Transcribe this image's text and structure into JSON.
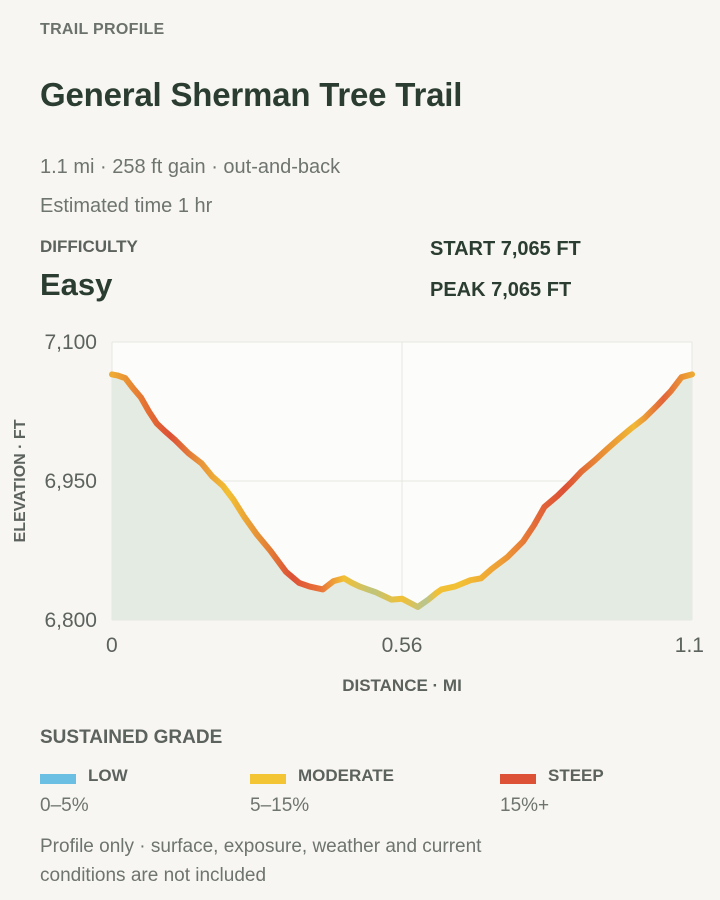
{
  "header": {
    "eyebrow": "TRAIL PROFILE",
    "title": "General Sherman Tree Trail",
    "summary": "1.1 mi · 258 ft gain · out-and-back",
    "estimated_time": "Estimated time 1 hr"
  },
  "difficulty": {
    "label": "DIFFICULTY",
    "value": "Easy"
  },
  "stats": {
    "start": "START 7,065 FT",
    "peak": "PEAK 7,065 FT"
  },
  "legend": {
    "title": "SUSTAINED GRADE",
    "items": [
      {
        "name": "LOW",
        "range": "0–5%",
        "color": "#6bbfe3"
      },
      {
        "name": "MODERATE",
        "range": "5–15%",
        "color": "#f3c534"
      },
      {
        "name": "STEEP",
        "range": "15%+",
        "color": "#dd5136"
      }
    ]
  },
  "footnote": "Profile only · surface, exposure, weather and current conditions are not included",
  "chart_data": {
    "type": "area",
    "xlabel": "DISTANCE · MI",
    "ylabel": "ELEVATION · FT",
    "xlim": [
      0,
      1.1
    ],
    "ylim": [
      6800,
      7100
    ],
    "x_ticks": [
      "0",
      "0.56",
      "1.1"
    ],
    "y_ticks": [
      "7,100",
      "6,950",
      "6,800"
    ],
    "grid": true,
    "fill_color": "#e4ebe3",
    "series": [
      {
        "x": [
          0,
          0.01,
          0.025,
          0.04,
          0.055,
          0.07,
          0.085,
          0.1,
          0.12,
          0.145,
          0.17,
          0.19,
          0.21,
          0.23,
          0.25,
          0.275,
          0.3,
          0.33,
          0.355,
          0.375,
          0.4,
          0.42,
          0.44,
          0.455,
          0.47,
          0.485,
          0.5,
          0.53,
          0.55,
          0.58,
          0.6,
          0.615,
          0.625,
          0.65,
          0.68,
          0.7,
          0.72,
          0.75,
          0.78,
          0.8,
          0.82,
          0.845,
          0.87,
          0.89,
          0.915,
          0.94,
          0.96,
          0.985,
          1.01,
          1.035,
          1.06,
          1.08,
          1.1
        ],
        "y": [
          7065,
          7064,
          7061,
          7050,
          7040,
          7025,
          7012,
          7004,
          6994,
          6980,
          6969,
          6955,
          6945,
          6930,
          6912,
          6892,
          6875,
          6852,
          6840,
          6836,
          6833,
          6842,
          6845,
          6840,
          6836,
          6833,
          6830,
          6822,
          6823,
          6814,
          6822,
          6829,
          6833,
          6836,
          6843,
          6845,
          6855,
          6868,
          6885,
          6902,
          6922,
          6934,
          6948,
          6960,
          6972,
          6985,
          6995,
          7007,
          7018,
          7032,
          7047,
          7062,
          7065
        ]
      }
    ]
  }
}
